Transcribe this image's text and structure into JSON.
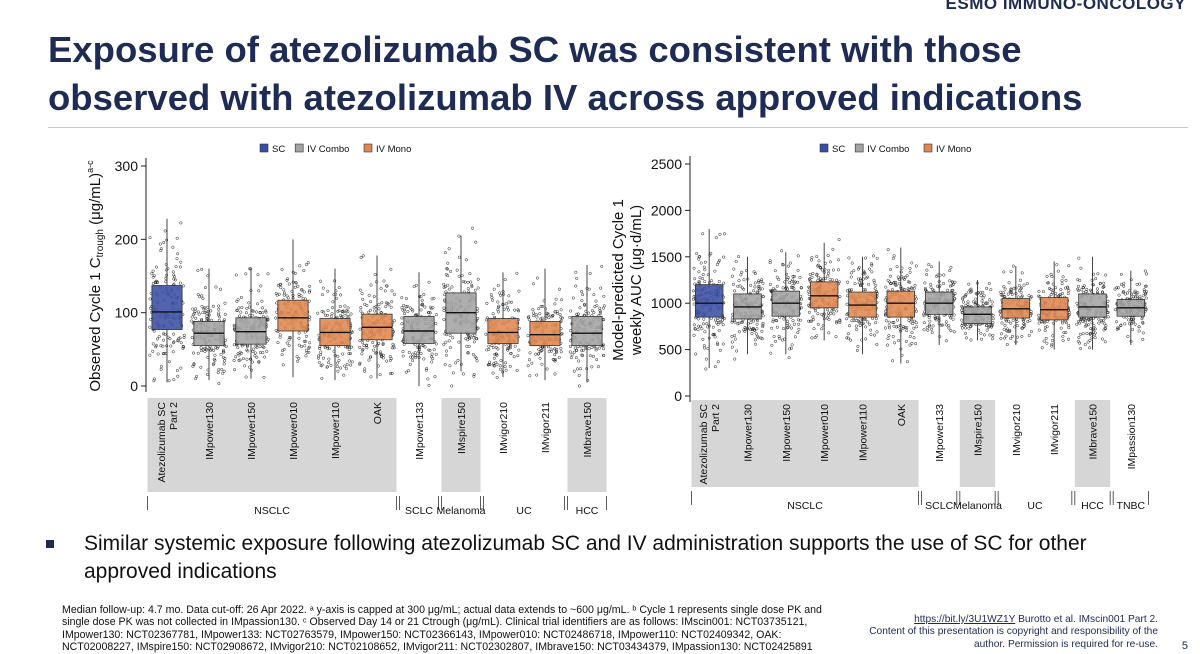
{
  "header": {
    "brand": "ESMO IMMUNO-ONCOLOGY"
  },
  "slide": {
    "title": "Exposure of atezolizumab SC was consistent with those observed with atezolizumab IV across approved indications",
    "bullet": "Similar systemic exposure following atezolizumab SC and IV administration supports the use of SC for other approved indications",
    "footnote": "Median follow-up: 4.7 mo. Data cut-off: 26 Apr 2022. ᵃ y-axis is capped at 300 μg/mL; actual data extends to ~600 μg/mL. ᵇ Cycle 1 represents single dose PK and single dose PK was not collected in IMpassion130. ᶜ Observed Day 14 or 21 Ctrough (μg/mL). Clinical trial identifiers are as follows: IMscin001: NCT03735121, IMpower130: NCT02367781, IMpower133: NCT02763579, IMpower150: NCT02366143, IMpower010: NCT02486718, IMpower110: NCT02409342, OAK: NCT02008227, IMspire150: NCT02908672, IMvigor210: NCT02108652, IMvigor211: NCT02302807, IMbrave150: NCT03434379, IMpassion130: NCT02425891",
    "ref_link": "https://bit.ly/3U1WZ1Y",
    "ref_text": " Burotto et al. IMscin001 Part 2.",
    "copyright": "Content of this presentation is copyright and responsibility of the author. Permission is required for re-use.",
    "page_number": "5"
  },
  "colors": {
    "SC": "#3a4ea3",
    "IV Combo": "#a3a3a3",
    "IV Mono": "#e0874f",
    "title": "#1d2b55",
    "group_band": "#d6d6d6"
  },
  "chart_data": [
    {
      "type": "box",
      "ylabel_main": "Observed Cycle 1 C",
      "ylabel_sub": "trough",
      "ylabel_unit": " (μg/mL)",
      "ylabel_sup": "a-c",
      "yticks": [
        0,
        100,
        200,
        300
      ],
      "ylim": [
        0,
        300
      ],
      "legend": [
        "SC",
        "IV Combo",
        "IV Mono"
      ],
      "legend_position": "top",
      "categories": [
        "Atezolizumab SC Part 2",
        "IMpower130",
        "IMpower150",
        "IMpower010",
        "IMpower110",
        "OAK",
        "IMpower133",
        "IMspire150",
        "IMvigor210",
        "IMvigor211",
        "IMbrave150"
      ],
      "category_lines": [
        [
          "Atezolizumab SC",
          "Part 2"
        ],
        [
          "IMpower130"
        ],
        [
          "IMpower150"
        ],
        [
          "IMpower010"
        ],
        [
          "IMpower110"
        ],
        [
          "OAK"
        ],
        [
          "IMpower133"
        ],
        [
          "IMspire150"
        ],
        [
          "IMvigor210"
        ],
        [
          "IMvigor211"
        ],
        [
          "IMbrave150"
        ]
      ],
      "kinds": [
        "SC",
        "IV Combo",
        "IV Combo",
        "IV Mono",
        "IV Mono",
        "IV Mono",
        "IV Combo",
        "IV Combo",
        "IV Mono",
        "IV Mono",
        "IV Combo"
      ],
      "series": [
        {
          "name": "Atezolizumab SC Part 2",
          "q1": 77,
          "median": 101,
          "q3": 137,
          "whisker_low": 5,
          "whisker_high": 228
        },
        {
          "name": "IMpower130",
          "q1": 55,
          "median": 72,
          "q3": 88,
          "whisker_low": 8,
          "whisker_high": 160
        },
        {
          "name": "IMpower150",
          "q1": 57,
          "median": 74,
          "q3": 93,
          "whisker_low": 10,
          "whisker_high": 160
        },
        {
          "name": "IMpower010",
          "q1": 75,
          "median": 93,
          "q3": 117,
          "whisker_low": 12,
          "whisker_high": 200
        },
        {
          "name": "IMpower110",
          "q1": 55,
          "median": 73,
          "q3": 92,
          "whisker_low": 8,
          "whisker_high": 160
        },
        {
          "name": "OAK",
          "q1": 63,
          "median": 80,
          "q3": 98,
          "whisker_low": 10,
          "whisker_high": 178
        },
        {
          "name": "IMpower133",
          "q1": 58,
          "median": 75,
          "q3": 95,
          "whisker_low": 0,
          "whisker_high": 155
        },
        {
          "name": "IMspire150",
          "q1": 72,
          "median": 100,
          "q3": 127,
          "whisker_low": 20,
          "whisker_high": 205
        },
        {
          "name": "IMvigor210",
          "q1": 58,
          "median": 73,
          "q3": 92,
          "whisker_low": 12,
          "whisker_high": 155
        },
        {
          "name": "IMvigor211",
          "q1": 55,
          "median": 70,
          "q3": 88,
          "whisker_low": 8,
          "whisker_high": 160
        },
        {
          "name": "IMbrave150",
          "q1": 55,
          "median": 72,
          "q3": 95,
          "whisker_low": 5,
          "whisker_high": 165
        }
      ],
      "groups": [
        {
          "label": "NSCLC",
          "from": 0,
          "to": 5
        },
        {
          "label": "SCLC",
          "from": 6,
          "to": 6
        },
        {
          "label": "Melanoma",
          "from": 7,
          "to": 7
        },
        {
          "label": "UC",
          "from": 8,
          "to": 9
        },
        {
          "label": "HCC",
          "from": 10,
          "to": 10
        }
      ]
    },
    {
      "type": "box",
      "ylabel_main": "Model-predicted Cycle 1",
      "ylabel_second": "weekly AUC (μg·d/mL)",
      "yticks": [
        0,
        500,
        1000,
        1500,
        2000,
        2500
      ],
      "ylim": [
        0,
        2500
      ],
      "legend": [
        "SC",
        "IV Combo",
        "IV Mono"
      ],
      "legend_position": "top",
      "categories": [
        "Atezolizumab SC Part 2",
        "IMpower130",
        "IMpower150",
        "IMpower010",
        "IMpower110",
        "OAK",
        "IMpower133",
        "IMspire150",
        "IMvigor210",
        "IMvigor211",
        "IMbrave150",
        "IMpassion130"
      ],
      "category_lines": [
        [
          "Atezolizumab SC",
          "Part 2"
        ],
        [
          "IMpower130"
        ],
        [
          "IMpower150"
        ],
        [
          "IMpower010"
        ],
        [
          "IMpower110"
        ],
        [
          "OAK"
        ],
        [
          "IMpower133"
        ],
        [
          "IMspire150"
        ],
        [
          "IMvigor210"
        ],
        [
          "IMvigor211"
        ],
        [
          "IMbrave150"
        ],
        [
          "IMpassion130"
        ]
      ],
      "kinds": [
        "SC",
        "IV Combo",
        "IV Combo",
        "IV Mono",
        "IV Mono",
        "IV Mono",
        "IV Combo",
        "IV Combo",
        "IV Mono",
        "IV Mono",
        "IV Combo",
        "IV Combo"
      ],
      "series": [
        {
          "name": "Atezolizumab SC Part 2",
          "q1": 850,
          "median": 1000,
          "q3": 1200,
          "whisker_low": 300,
          "whisker_high": 1800
        },
        {
          "name": "IMpower130",
          "q1": 830,
          "median": 960,
          "q3": 1100,
          "whisker_low": 450,
          "whisker_high": 1500
        },
        {
          "name": "IMpower150",
          "q1": 860,
          "median": 1000,
          "q3": 1130,
          "whisker_low": 450,
          "whisker_high": 1550
        },
        {
          "name": "IMpower010",
          "q1": 950,
          "median": 1080,
          "q3": 1230,
          "whisker_low": 600,
          "whisker_high": 1650
        },
        {
          "name": "IMpower110",
          "q1": 850,
          "median": 980,
          "q3": 1120,
          "whisker_low": 450,
          "whisker_high": 1500
        },
        {
          "name": "OAK",
          "q1": 850,
          "median": 1000,
          "q3": 1130,
          "whisker_low": 350,
          "whisker_high": 1600
        },
        {
          "name": "IMpower133",
          "q1": 880,
          "median": 1000,
          "q3": 1120,
          "whisker_low": 550,
          "whisker_high": 1450
        },
        {
          "name": "IMspire150",
          "q1": 780,
          "median": 880,
          "q3": 960,
          "whisker_low": 600,
          "whisker_high": 1250
        },
        {
          "name": "IMvigor210",
          "q1": 840,
          "median": 940,
          "q3": 1050,
          "whisker_low": 550,
          "whisker_high": 1400
        },
        {
          "name": "IMvigor211",
          "q1": 820,
          "median": 930,
          "q3": 1060,
          "whisker_low": 500,
          "whisker_high": 1450
        },
        {
          "name": "IMbrave150",
          "q1": 850,
          "median": 960,
          "q3": 1100,
          "whisker_low": 500,
          "whisker_high": 1500
        },
        {
          "name": "IMpassion130",
          "q1": 860,
          "median": 950,
          "q3": 1040,
          "whisker_low": 550,
          "whisker_high": 1350
        }
      ],
      "groups": [
        {
          "label": "NSCLC",
          "from": 0,
          "to": 5
        },
        {
          "label": "SCLC",
          "from": 6,
          "to": 6
        },
        {
          "label": "Melanoma",
          "from": 7,
          "to": 7
        },
        {
          "label": "UC",
          "from": 8,
          "to": 9
        },
        {
          "label": "HCC",
          "from": 10,
          "to": 10
        },
        {
          "label": "TNBC",
          "from": 11,
          "to": 11
        }
      ]
    }
  ]
}
